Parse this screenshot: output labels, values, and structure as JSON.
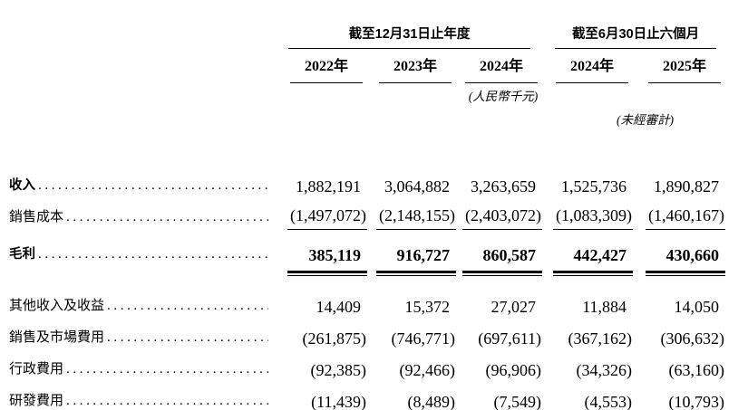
{
  "table": {
    "header": {
      "section_annual": "截至12月31日止年度",
      "section_interim": "截至6月30日止六個月",
      "years": [
        "2022年",
        "2023年",
        "2024年",
        "2024年",
        "2025年"
      ],
      "currency_note": "(人民幣千元)",
      "unaudited_note": "(未經審計)"
    },
    "rows": [
      {
        "label": "收入",
        "values": [
          "1,882,191",
          "3,064,882",
          "3,263,659",
          "1,525,736",
          "1,890,827"
        ]
      },
      {
        "label": "銷售成本",
        "values": [
          "(1,497,072)",
          "(2,148,155)",
          "(2,403,072)",
          "(1,083,309)",
          "(1,460,167)"
        ]
      },
      {
        "label": "毛利",
        "values": [
          "385,119",
          "916,727",
          "860,587",
          "442,427",
          "430,660"
        ]
      },
      {
        "label": "其他收入及收益",
        "values": [
          "14,409",
          "15,372",
          "27,027",
          "11,884",
          "14,050"
        ]
      },
      {
        "label": "銷售及市場費用",
        "values": [
          "(261,875)",
          "(746,771)",
          "(697,611)",
          "(367,162)",
          "(306,632)"
        ]
      },
      {
        "label": "行政費用",
        "values": [
          "(92,385)",
          "(92,466)",
          "(96,906)",
          "(34,326)",
          "(63,160)"
        ]
      },
      {
        "label": "研發費用",
        "values": [
          "(11,439)",
          "(8,489)",
          "(7,549)",
          "(4,553)",
          "(10,793)"
        ]
      }
    ]
  }
}
